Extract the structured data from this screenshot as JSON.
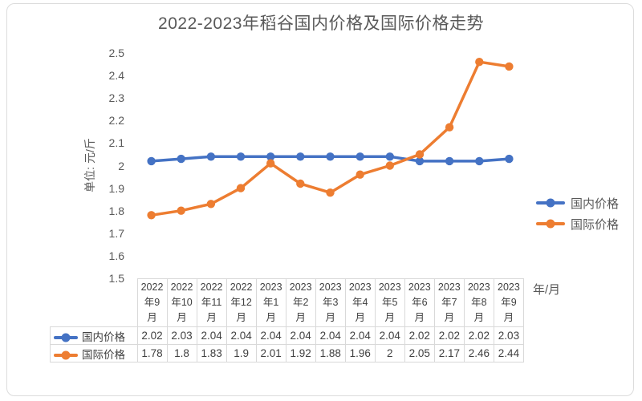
{
  "chart_data": {
    "type": "line",
    "title": "2022-2023年稻谷国内价格及国际价格走势",
    "ylabel": "单位: 元/斤",
    "xlabel": "年/月",
    "ylim": [
      1.5,
      2.5
    ],
    "yticks": [
      "2.5",
      "2.4",
      "2.3",
      "2.2",
      "2.1",
      "2",
      "1.9",
      "1.8",
      "1.7",
      "1.6",
      "1.5"
    ],
    "grid": false,
    "legend_position": "right",
    "show_data_table": true,
    "categories": [
      "2022年9月",
      "2022年10月",
      "2022年11月",
      "2022年12月",
      "2023年1月",
      "2023年2月",
      "2023年3月",
      "2023年4月",
      "2023年5月",
      "2023年6月",
      "2023年7月",
      "2023年8月",
      "2023年9月"
    ],
    "series": [
      {
        "name": "国内价格",
        "color": "#4472C4",
        "values": [
          2.02,
          2.03,
          2.04,
          2.04,
          2.04,
          2.04,
          2.04,
          2.04,
          2.04,
          2.02,
          2.02,
          2.02,
          2.03
        ]
      },
      {
        "name": "国际价格",
        "color": "#ED7D31",
        "values": [
          1.78,
          1.8,
          1.83,
          1.9,
          2.01,
          1.92,
          1.88,
          1.96,
          2,
          2.05,
          2.17,
          2.46,
          2.44
        ]
      }
    ]
  }
}
